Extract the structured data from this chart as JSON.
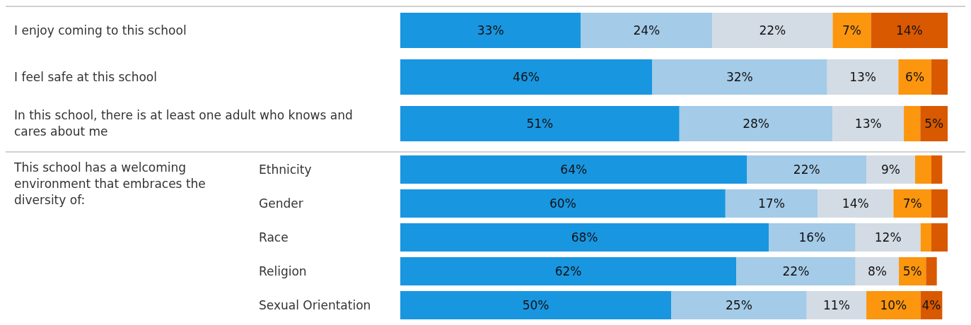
{
  "chart_data": [
    {
      "type": "bar",
      "orientation": "horizontal",
      "stacked": true,
      "tick_labels": "y",
      "categories": [
        "I enjoy coming to this school",
        "I feel safe at this school",
        "In this school, there is at least one adult who knows and cares about me"
      ],
      "series": [
        {
          "color": "#1996e0",
          "values": [
            33,
            46,
            51
          ],
          "value_labels": [
            "33%",
            "46%",
            "51%"
          ]
        },
        {
          "color": "#a4cbe8",
          "values": [
            24,
            32,
            28
          ],
          "value_labels": [
            "24%",
            "32%",
            "28%"
          ]
        },
        {
          "color": "#d3dbe4",
          "values": [
            22,
            13,
            13
          ],
          "value_labels": [
            "22%",
            "13%",
            "13%"
          ]
        },
        {
          "color": "#fb960e",
          "values": [
            7,
            6,
            3
          ],
          "value_labels": [
            "7%",
            "6%",
            null
          ]
        },
        {
          "color": "#d95900",
          "values": [
            14,
            3,
            5
          ],
          "value_labels": [
            "14%",
            null,
            "5%"
          ]
        }
      ]
    },
    {
      "type": "bar",
      "orientation": "horizontal",
      "stacked": true,
      "tick_labels": "y",
      "ylabel": "This school has a welcoming environment that embraces the diversity of:",
      "categories": [
        "Ethnicity",
        "Gender",
        "Race",
        "Religion",
        "Sexual Orientation"
      ],
      "series": [
        {
          "color": "#1996e0",
          "values": [
            64,
            60,
            68,
            62,
            50
          ],
          "value_labels": [
            "64%",
            "60%",
            "68%",
            "62%",
            "50%"
          ]
        },
        {
          "color": "#a4cbe8",
          "values": [
            22,
            17,
            16,
            22,
            25
          ],
          "value_labels": [
            "22%",
            "17%",
            "16%",
            "22%",
            "25%"
          ]
        },
        {
          "color": "#d3dbe4",
          "values": [
            9,
            14,
            12,
            8,
            11
          ],
          "value_labels": [
            "9%",
            "14%",
            "12%",
            "8%",
            "11%"
          ]
        },
        {
          "color": "#fb960e",
          "values": [
            3,
            7,
            2,
            5,
            10
          ],
          "value_labels": [
            null,
            "7%",
            null,
            "5%",
            "10%"
          ]
        },
        {
          "color": "#d95900",
          "values": [
            2,
            3,
            3,
            2,
            4
          ],
          "value_labels": [
            null,
            null,
            null,
            null,
            "4%"
          ]
        }
      ]
    }
  ]
}
